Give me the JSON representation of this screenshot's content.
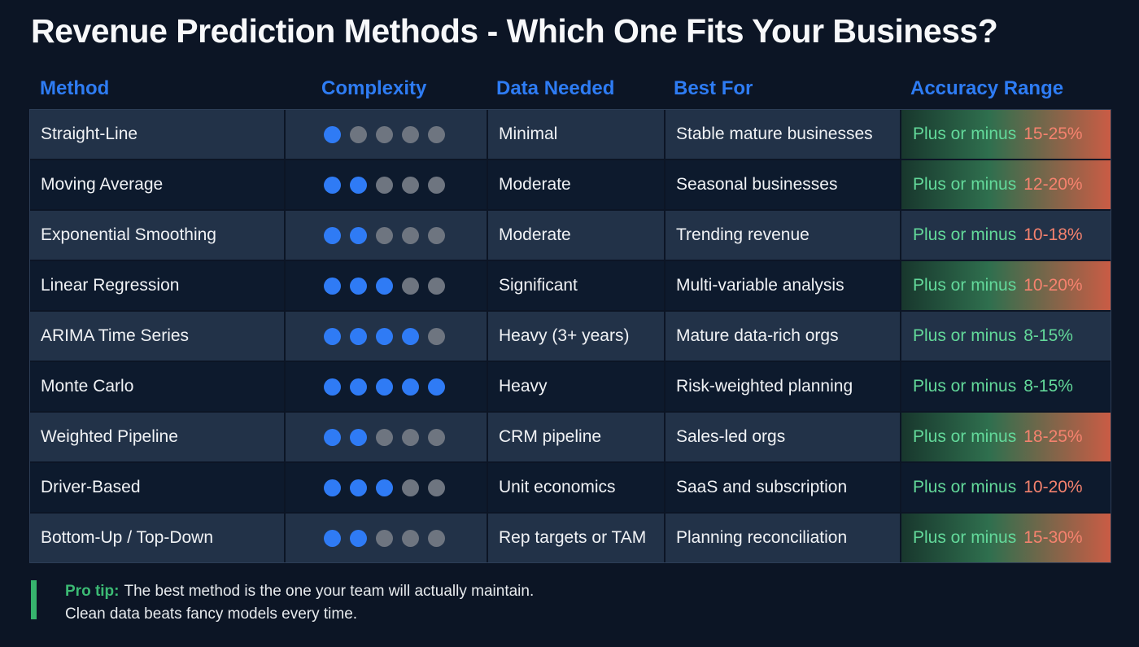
{
  "title": "Revenue Prediction Methods - Which One Fits Your Business?",
  "table": {
    "columns": [
      "Method",
      "Complexity",
      "Data Needed",
      "Best For",
      "Accuracy Range"
    ],
    "complexity_max": 5,
    "rows": [
      {
        "method": "Straight-Line",
        "complexity": 1,
        "data_needed": "Minimal",
        "best_for": "Stable mature businesses",
        "accuracy_label": "Plus or minus",
        "accuracy_value": "15-25%",
        "gradient": true,
        "value_color": "salmon"
      },
      {
        "method": "Moving Average",
        "complexity": 2,
        "data_needed": "Moderate",
        "best_for": "Seasonal businesses",
        "accuracy_label": "Plus or minus",
        "accuracy_value": "12-20%",
        "gradient": true,
        "value_color": "salmon"
      },
      {
        "method": "Exponential Smoothing",
        "complexity": 2,
        "data_needed": "Moderate",
        "best_for": "Trending revenue",
        "accuracy_label": "Plus or minus",
        "accuracy_value": "10-18%",
        "gradient": false,
        "value_color": "salmon"
      },
      {
        "method": "Linear Regression",
        "complexity": 3,
        "data_needed": "Significant",
        "best_for": "Multi-variable analysis",
        "accuracy_label": "Plus or minus",
        "accuracy_value": "10-20%",
        "gradient": true,
        "value_color": "salmon"
      },
      {
        "method": "ARIMA Time Series",
        "complexity": 4,
        "data_needed": "Heavy (3+ years)",
        "best_for": "Mature data-rich orgs",
        "accuracy_label": "Plus or minus",
        "accuracy_value": "8-15%",
        "gradient": false,
        "value_color": "green"
      },
      {
        "method": "Monte Carlo",
        "complexity": 5,
        "data_needed": "Heavy",
        "best_for": "Risk-weighted planning",
        "accuracy_label": "Plus or minus",
        "accuracy_value": "8-15%",
        "gradient": false,
        "value_color": "green"
      },
      {
        "method": "Weighted Pipeline",
        "complexity": 2,
        "data_needed": "CRM pipeline",
        "best_for": "Sales-led orgs",
        "accuracy_label": "Plus or minus",
        "accuracy_value": "18-25%",
        "gradient": true,
        "value_color": "salmon"
      },
      {
        "method": "Driver-Based",
        "complexity": 3,
        "data_needed": "Unit economics",
        "best_for": "SaaS and subscription",
        "accuracy_label": "Plus or minus",
        "accuracy_value": "10-20%",
        "gradient": false,
        "value_color": "salmon"
      },
      {
        "method": "Bottom-Up / Top-Down",
        "complexity": 2,
        "data_needed": "Rep targets or TAM",
        "best_for": "Planning reconciliation",
        "accuracy_label": "Plus or minus",
        "accuracy_value": "15-30%",
        "gradient": true,
        "value_color": "salmon"
      }
    ]
  },
  "footer": {
    "tip_label": "Pro tip:",
    "line1": "The best method is the one your team will actually maintain.",
    "line2": "Clean data beats fancy models every time."
  },
  "colors": {
    "page_background": "#0c1525",
    "row_light": "#223248",
    "row_dark": "#0d1a2d",
    "header_blue": "#2e7cf4",
    "dot_blue": "#2f7bf5",
    "dot_gray": "#6e7580",
    "accuracy_label_green": "#63d99a",
    "accuracy_value_salmon": "#f5826e",
    "gradient_green": "#2f6f4e",
    "gradient_red": "#ca5c45",
    "tip_green": "#36b46d",
    "title_white": "#f7f8fa"
  },
  "chart_data": {
    "type": "table",
    "title": "Revenue Prediction Methods - Which One Fits Your Business?",
    "columns": [
      "Method",
      "Complexity (1-5)",
      "Data Needed",
      "Best For",
      "Accuracy Range"
    ],
    "rows": [
      [
        "Straight-Line",
        1,
        "Minimal",
        "Stable mature businesses",
        "Plus or minus 15-25%"
      ],
      [
        "Moving Average",
        2,
        "Moderate",
        "Seasonal businesses",
        "Plus or minus 12-20%"
      ],
      [
        "Exponential Smoothing",
        2,
        "Moderate",
        "Trending revenue",
        "Plus or minus 10-18%"
      ],
      [
        "Linear Regression",
        3,
        "Significant",
        "Multi-variable analysis",
        "Plus or minus 10-20%"
      ],
      [
        "ARIMA Time Series",
        4,
        "Heavy (3+ years)",
        "Mature data-rich orgs",
        "Plus or minus 8-15%"
      ],
      [
        "Monte Carlo",
        5,
        "Heavy",
        "Risk-weighted planning",
        "Plus or minus 8-15%"
      ],
      [
        "Weighted Pipeline",
        2,
        "CRM pipeline",
        "Sales-led orgs",
        "Plus or minus 18-25%"
      ],
      [
        "Driver-Based",
        3,
        "Unit economics",
        "SaaS and subscription",
        "Plus or minus 10-20%"
      ],
      [
        "Bottom-Up / Top-Down",
        2,
        "Rep targets or TAM",
        "Planning reconciliation",
        "Plus or minus 15-30%"
      ]
    ],
    "annotation": "Pro tip: The best method is the one your team will actually maintain. Clean data beats fancy models every time."
  }
}
